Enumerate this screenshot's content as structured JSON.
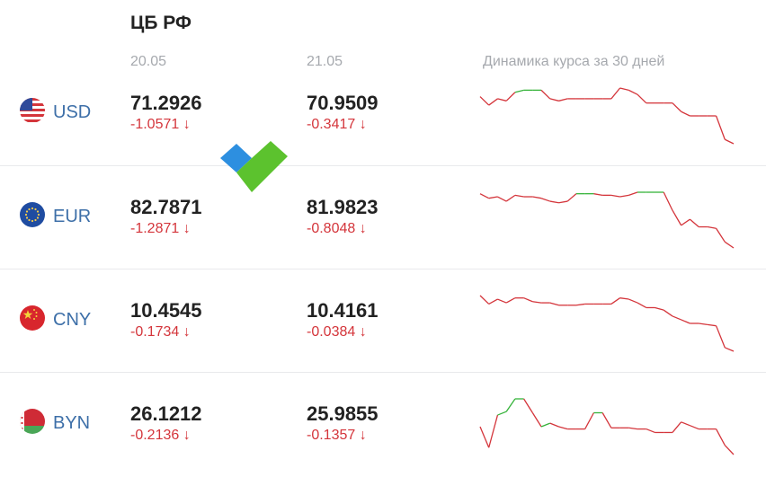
{
  "title": "ЦБ РФ",
  "columns": {
    "date1": "20.05",
    "date2": "21.05",
    "chart": "Динамика курса за 30 дней"
  },
  "colors": {
    "up": "#35b33a",
    "down": "#d4353b",
    "code": "#3d6fa8"
  },
  "currencies": [
    {
      "code": "USD",
      "flag": "us-flag-icon",
      "val1": "71.2926",
      "chg1": "-1.0571 ↓",
      "val2": "70.9509",
      "chg2": "-0.3417 ↓",
      "spark": [
        71.7,
        71.3,
        71.6,
        71.5,
        71.9,
        72.0,
        72.0,
        72.0,
        71.6,
        71.5,
        71.6,
        71.6,
        71.6,
        71.6,
        71.6,
        71.6,
        72.1,
        72.0,
        71.8,
        71.4,
        71.4,
        71.4,
        71.4,
        71.0,
        70.8,
        70.8,
        70.8,
        70.8,
        69.7,
        69.5
      ]
    },
    {
      "code": "EUR",
      "flag": "eu-flag-icon",
      "val1": "82.7871",
      "chg1": "-1.2871 ↓",
      "val2": "81.9823",
      "chg2": "-0.8048 ↓",
      "spark": [
        87.5,
        87.2,
        87.3,
        87.0,
        87.4,
        87.3,
        87.3,
        87.2,
        87.0,
        86.9,
        87.0,
        87.5,
        87.5,
        87.5,
        87.4,
        87.4,
        87.3,
        87.4,
        87.6,
        87.6,
        87.6,
        87.6,
        86.4,
        85.4,
        85.8,
        85.3,
        85.3,
        85.2,
        84.3,
        83.9
      ]
    },
    {
      "code": "CNY",
      "flag": "cn-flag-icon",
      "val1": "10.4545",
      "chg1": "-0.1734 ↓",
      "val2": "10.4161",
      "chg2": "-0.0384 ↓",
      "spark": [
        10.95,
        10.88,
        10.92,
        10.89,
        10.93,
        10.93,
        10.9,
        10.89,
        10.89,
        10.87,
        10.87,
        10.87,
        10.88,
        10.88,
        10.88,
        10.88,
        10.93,
        10.92,
        10.89,
        10.85,
        10.85,
        10.83,
        10.78,
        10.75,
        10.72,
        10.72,
        10.71,
        10.7,
        10.52,
        10.49
      ]
    },
    {
      "code": "BYN",
      "flag": "by-flag-icon",
      "val1": "26.1212",
      "chg1": "-0.2136 ↓",
      "val2": "25.9855",
      "chg2": "-0.1357 ↓",
      "spark": [
        27.8,
        26.0,
        28.8,
        29.1,
        30.2,
        30.2,
        29.0,
        27.8,
        28.1,
        27.8,
        27.6,
        27.6,
        27.6,
        29.0,
        29.0,
        27.7,
        27.7,
        27.7,
        27.6,
        27.6,
        27.3,
        27.3,
        27.3,
        28.2,
        27.9,
        27.6,
        27.6,
        27.6,
        26.2,
        25.4
      ]
    }
  ]
}
